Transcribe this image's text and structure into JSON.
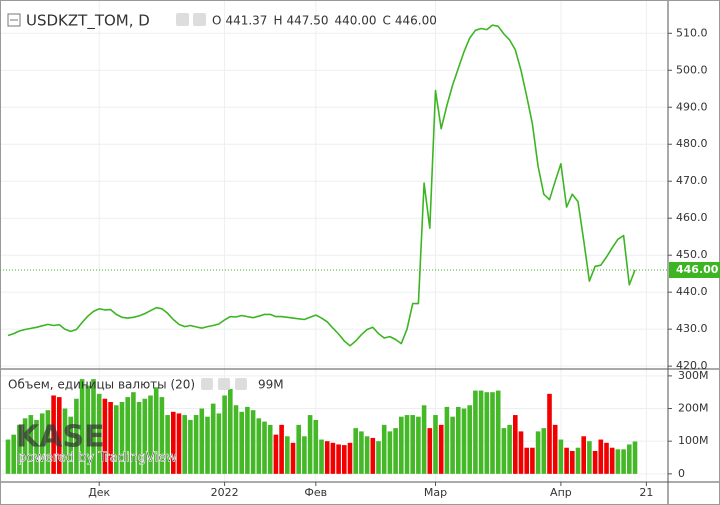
{
  "chart_data": {
    "type": "line",
    "title": "USDKZT_TOM, D",
    "ohlc": [
      {
        "label": "O",
        "value": "441.37"
      },
      {
        "label": "H",
        "value": "447.50"
      },
      {
        "value": "440.00"
      },
      {
        "label": "C",
        "value": "446.00"
      }
    ],
    "last_price": {
      "value": 446.0,
      "label": "446.00"
    },
    "color": "#3db523",
    "watermark": {
      "logo": "KASE",
      "text": "powered by TradingView"
    },
    "categories": [
      null,
      null,
      null,
      null,
      null,
      null,
      null,
      null,
      null,
      null,
      null,
      null,
      null,
      null,
      null,
      null,
      "Дек",
      null,
      null,
      null,
      null,
      null,
      null,
      null,
      null,
      null,
      null,
      null,
      null,
      null,
      null,
      null,
      null,
      null,
      null,
      null,
      null,
      null,
      "2022",
      null,
      null,
      null,
      null,
      null,
      null,
      null,
      null,
      null,
      null,
      null,
      null,
      null,
      null,
      null,
      "Фев",
      null,
      null,
      null,
      null,
      null,
      null,
      null,
      null,
      null,
      null,
      null,
      null,
      null,
      null,
      null,
      null,
      null,
      null,
      null,
      null,
      "Мар",
      null,
      null,
      null,
      null,
      null,
      null,
      null,
      null,
      null,
      null,
      null,
      null,
      null,
      null,
      null,
      null,
      null,
      null,
      null,
      null,
      null,
      "Апр",
      null,
      null,
      null,
      null,
      null,
      null,
      null,
      null,
      null,
      null,
      null,
      null,
      null,
      null,
      "21"
    ],
    "series": [
      {
        "name": "USDKZT_TOM",
        "values": [
          428.3,
          428.8,
          429.5,
          429.9,
          430.2,
          430.5,
          430.9,
          431.3,
          431.0,
          431.2,
          430.0,
          429.4,
          429.9,
          431.8,
          433.5,
          434.8,
          435.5,
          435.2,
          435.3,
          434.0,
          433.2,
          433.0,
          433.2,
          433.6,
          434.2,
          435.0,
          435.8,
          435.5,
          434.3,
          432.6,
          431.3,
          430.7,
          431.0,
          430.6,
          430.3,
          430.7,
          431.0,
          431.4,
          432.5,
          433.4,
          433.3,
          433.7,
          433.4,
          433.1,
          433.5,
          434.0,
          434.0,
          433.4,
          433.4,
          433.2,
          433.0,
          432.8,
          432.6,
          433.2,
          433.8,
          433.0,
          432.0,
          430.3,
          428.7,
          426.8,
          425.5,
          426.8,
          428.5,
          429.9,
          430.5,
          428.8,
          427.6,
          428.0,
          427.2,
          426.1,
          430.0,
          436.9,
          436.9,
          469.5,
          457.3,
          494.5,
          484.2,
          490.5,
          496.0,
          500.5,
          505.0,
          508.7,
          510.8,
          511.3,
          511.0,
          512.2,
          511.9,
          509.8,
          508.2,
          505.5,
          500.0,
          493.0,
          485.5,
          474.0,
          466.5,
          465.0,
          470.0,
          474.7,
          463.0,
          466.5,
          464.5,
          454.0,
          443.0,
          447.0,
          447.3,
          449.5,
          452.0,
          454.3,
          455.3,
          442.0,
          446.0,
          null,
          null
        ]
      },
      {
        "name": "Объем, единицы валюты (20)",
        "type": "bar",
        "axis": "y2",
        "last_label": "99M",
        "values": [
          105,
          120,
          150,
          170,
          180,
          165,
          185,
          195,
          240,
          235,
          200,
          175,
          230,
          290,
          270,
          290,
          245,
          230,
          220,
          210,
          220,
          235,
          250,
          220,
          230,
          240,
          265,
          235,
          180,
          190,
          185,
          180,
          165,
          180,
          200,
          175,
          215,
          185,
          240,
          260,
          210,
          190,
          205,
          195,
          170,
          160,
          150,
          120,
          150,
          115,
          95,
          150,
          115,
          180,
          165,
          105,
          100,
          95,
          90,
          88,
          95,
          140,
          130,
          115,
          110,
          100,
          150,
          130,
          140,
          175,
          180,
          180,
          175,
          210,
          140,
          180,
          150,
          205,
          175,
          205,
          200,
          210,
          255,
          255,
          250,
          250,
          255,
          140,
          150,
          180,
          130,
          80,
          80,
          130,
          140,
          245,
          150,
          105,
          80,
          70,
          80,
          115,
          100,
          70,
          105,
          95,
          80,
          75,
          75,
          90,
          99,
          null,
          null
        ],
        "colors": [
          "#44b826",
          "#44b826",
          "#44b826",
          "#44b826",
          "#44b826",
          "#44b826",
          "#44b826",
          "#44b826",
          "#f20000",
          "#f20000",
          "#44b826",
          "#44b826",
          "#44b826",
          "#44b826",
          "#44b826",
          "#44b826",
          "#44b826",
          "#f20000",
          "#f20000",
          "#44b826",
          "#44b826",
          "#44b826",
          "#44b826",
          "#44b826",
          "#44b826",
          "#44b826",
          "#44b826",
          "#44b826",
          "#44b826",
          "#f20000",
          "#f20000",
          "#44b826",
          "#44b826",
          "#44b826",
          "#44b826",
          "#44b826",
          "#44b826",
          "#44b826",
          "#44b826",
          "#44b826",
          "#44b826",
          "#44b826",
          "#44b826",
          "#44b826",
          "#44b826",
          "#44b826",
          "#44b826",
          "#f20000",
          "#f20000",
          "#44b826",
          "#f20000",
          "#44b826",
          "#44b826",
          "#44b826",
          "#44b826",
          "#44b826",
          "#f20000",
          "#f20000",
          "#f20000",
          "#f20000",
          "#f20000",
          "#44b826",
          "#44b826",
          "#44b826",
          "#f20000",
          "#44b826",
          "#44b826",
          "#44b826",
          "#44b826",
          "#44b826",
          "#44b826",
          "#44b826",
          "#44b826",
          "#44b826",
          "#f20000",
          "#44b826",
          "#f20000",
          "#44b826",
          "#44b826",
          "#44b826",
          "#44b826",
          "#44b826",
          "#44b826",
          "#44b826",
          "#44b826",
          "#44b826",
          "#44b826",
          "#44b826",
          "#44b826",
          "#f20000",
          "#f20000",
          "#f20000",
          "#f20000",
          "#44b826",
          "#44b826",
          "#f20000",
          "#f20000",
          "#44b826",
          "#f20000",
          "#f20000",
          "#44b826",
          "#f20000",
          "#44b826",
          "#f20000",
          "#f20000",
          "#f20000",
          "#f20000",
          "#44b826",
          "#44b826",
          "#44b826",
          "#44b826",
          null,
          null
        ]
      }
    ],
    "ylim": [
      419.5,
      519
    ],
    "yticks": [
      {
        "value": 420,
        "label": "420.0"
      },
      {
        "value": 430,
        "label": "430.0"
      },
      {
        "value": 440,
        "label": "440.0"
      },
      {
        "value": 450,
        "label": "450.0"
      },
      {
        "value": 460,
        "label": "460.0"
      },
      {
        "value": 470,
        "label": "470.0"
      },
      {
        "value": 480,
        "label": "480.0"
      },
      {
        "value": 490,
        "label": "490.0"
      },
      {
        "value": 500,
        "label": "500.0"
      },
      {
        "value": 510,
        "label": "510.0"
      }
    ],
    "y2lim": [
      -25,
      318
    ],
    "y2ticks": [
      0,
      {
        "value": 100,
        "label": "100M"
      },
      {
        "value": 200,
        "label": "200M"
      },
      {
        "value": 300,
        "label": "300M"
      }
    ],
    "grid": true
  }
}
